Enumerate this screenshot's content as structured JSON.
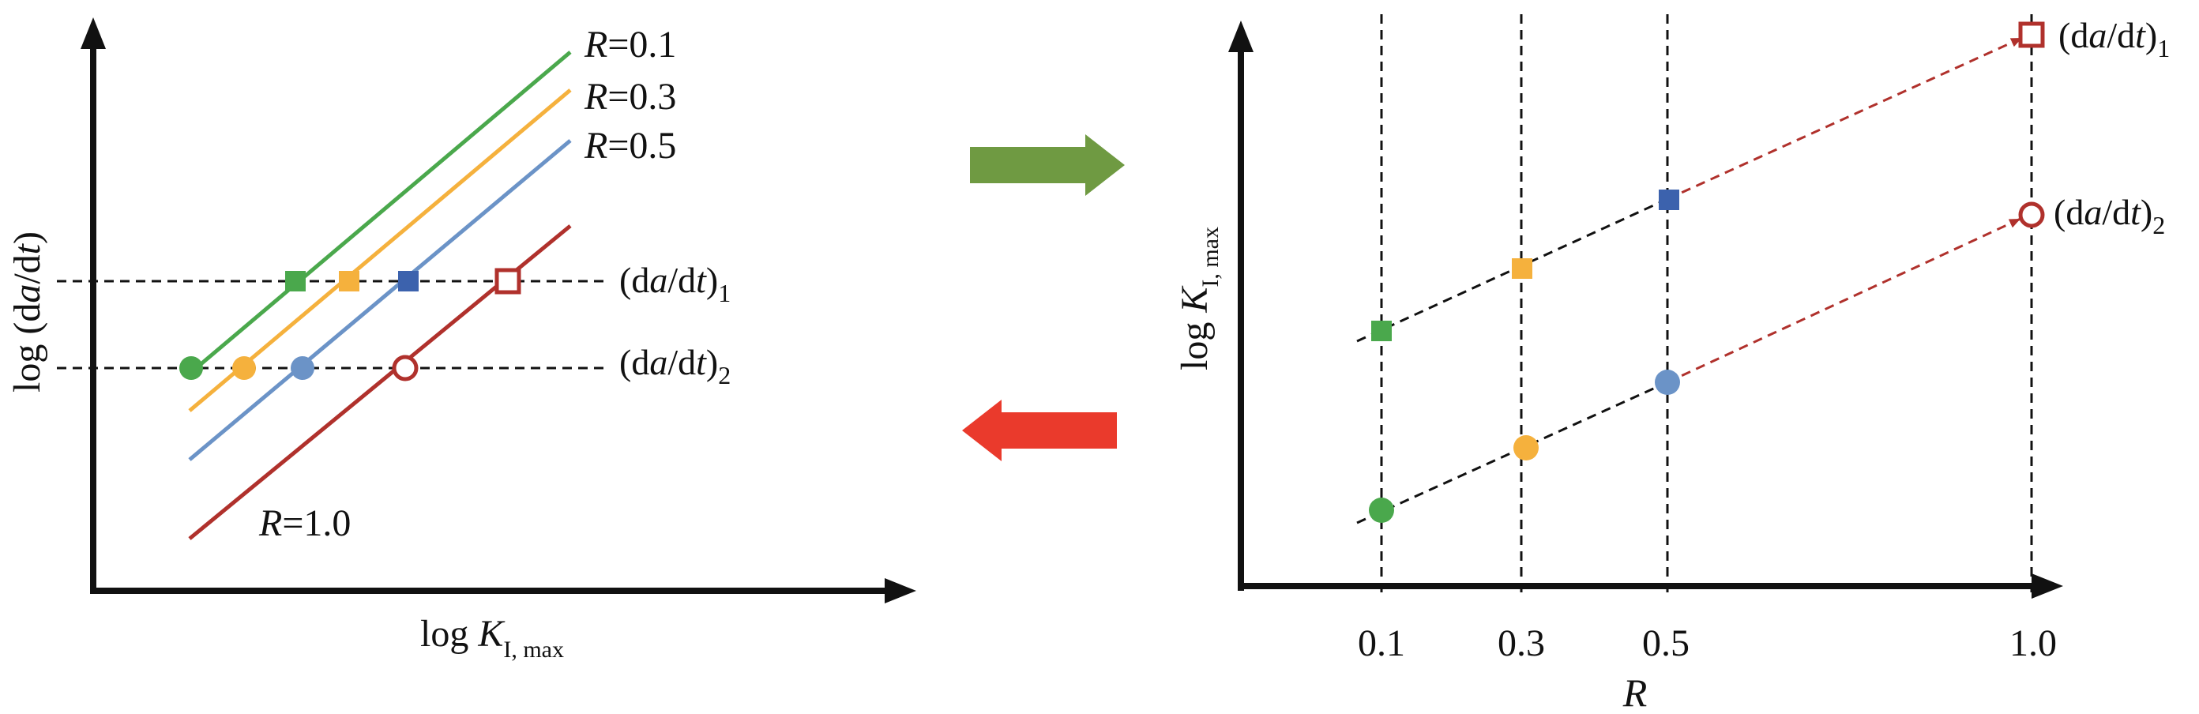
{
  "colors": {
    "axis": "#111111",
    "guide": "#111111",
    "r01": "#4aa84c",
    "r03": "#f5b13d",
    "r05": "#6b93c7",
    "r10": "#b0312c",
    "marker_r05_square": "#3c62ad",
    "arrow_right": "#6f9a42",
    "arrow_left": "#ea3a2c"
  },
  "icons": {
    "arrow_right": "green-right-arrow-icon",
    "arrow_left": "red-left-arrow-icon"
  },
  "left_panel": {
    "x_axis_label": {
      "prefix": "log ",
      "var": "K",
      "sub": "I, max"
    },
    "y_axis_label": {
      "prefix": "log (d",
      "var1": "a",
      "mid": "/d",
      "var2": "t",
      "suffix": ")"
    },
    "lines": [
      {
        "r_var": "R",
        "r_text": "=0.1",
        "color_key": "r01"
      },
      {
        "r_var": "R",
        "r_text": "=0.3",
        "color_key": "r03"
      },
      {
        "r_var": "R",
        "r_text": "=0.5",
        "color_key": "r05"
      },
      {
        "r_var": "R",
        "r_text": "=1.0",
        "color_key": "r10"
      }
    ],
    "rate_labels": [
      {
        "open": "(d",
        "var1": "a",
        "mid": "/d",
        "var2": "t",
        "close": ")",
        "sub": "1"
      },
      {
        "open": "(d",
        "var1": "a",
        "mid": "/d",
        "var2": "t",
        "close": ")",
        "sub": "2"
      }
    ]
  },
  "right_panel": {
    "x_axis_label": "R",
    "y_axis_label": {
      "prefix": "log ",
      "var": "K",
      "sub": "I, max"
    },
    "x_ticks": [
      "0.1",
      "0.3",
      "0.5",
      "1.0"
    ],
    "rate_labels": [
      {
        "open": "(d",
        "var1": "a",
        "mid": "/d",
        "var2": "t",
        "close": ")",
        "sub": "1"
      },
      {
        "open": "(d",
        "var1": "a",
        "mid": "/d",
        "var2": "t",
        "close": ")",
        "sub": "2"
      }
    ]
  }
}
